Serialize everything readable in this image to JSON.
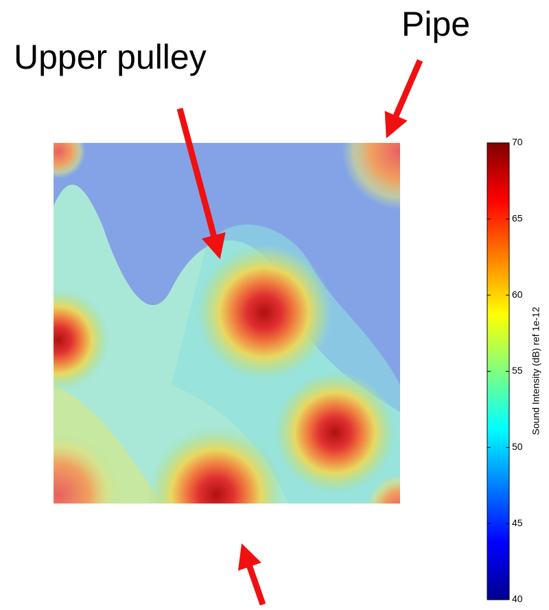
{
  "chart_data": {
    "type": "heatmap",
    "annotations": [
      "Upper pulley",
      "Pipe"
    ],
    "colorbar_label": "Sound Intensity (dB) ref 1e-12",
    "clim": [
      40,
      70
    ],
    "cticks": [
      40,
      45,
      50,
      55,
      60,
      65,
      70
    ]
  }
}
